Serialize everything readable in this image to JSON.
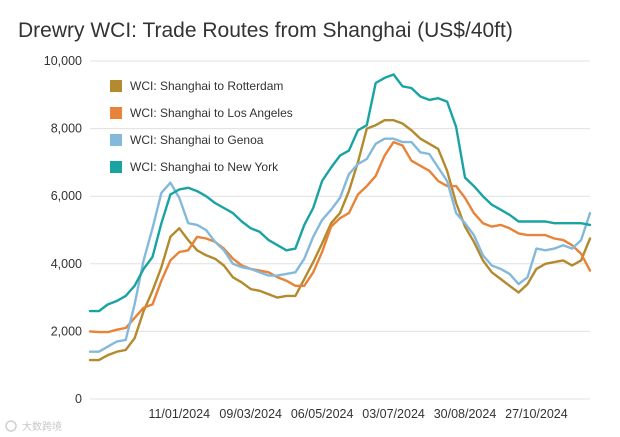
{
  "chart_data": {
    "type": "line",
    "title": "Drewry WCI: Trade Routes from Shanghai (US$/40ft)",
    "ylim": [
      0,
      10000
    ],
    "y_ticks": [
      0,
      2000,
      4000,
      6000,
      8000,
      10000
    ],
    "y_tick_labels": [
      "0",
      "2,000",
      "4,000",
      "6,000",
      "8,000",
      "10,000"
    ],
    "x_tick_labels": [
      "11/01/2024",
      "09/03/2024",
      "06/05/2024",
      "03/07/2024",
      "30/08/2024",
      "27/10/2024"
    ],
    "x_tick_week_index": [
      10,
      18,
      26,
      34,
      42,
      50
    ],
    "week_count": 57,
    "grid": true,
    "legend_position": "top-left",
    "series": [
      {
        "name": "WCI: Shanghai to Rotterdam",
        "color": "#b38a2d",
        "values": [
          1150,
          1150,
          1300,
          1400,
          1450,
          1800,
          2600,
          3200,
          3900,
          4800,
          5050,
          4700,
          4400,
          4250,
          4150,
          3950,
          3600,
          3450,
          3250,
          3200,
          3100,
          3000,
          3050,
          3050,
          3550,
          4050,
          4600,
          5200,
          5500,
          6150,
          7000,
          8000,
          8100,
          8250,
          8250,
          8150,
          7950,
          7700,
          7550,
          7400,
          6750,
          5800,
          5100,
          4650,
          4100,
          3750,
          3550,
          3350,
          3150,
          3400,
          3850,
          4000,
          4050,
          4100,
          3950,
          4100,
          4750
        ]
      },
      {
        "name": "WCI: Shanghai to Los Angeles",
        "color": "#e8833a",
        "values": [
          2000,
          1980,
          1980,
          2050,
          2100,
          2400,
          2700,
          2800,
          3500,
          4100,
          4350,
          4400,
          4800,
          4750,
          4650,
          4450,
          4150,
          3950,
          3850,
          3800,
          3750,
          3600,
          3500,
          3350,
          3350,
          3750,
          4350,
          5100,
          5350,
          5500,
          6050,
          6300,
          6600,
          7200,
          7600,
          7500,
          7050,
          6900,
          6750,
          6450,
          6300,
          6300,
          5950,
          5500,
          5200,
          5100,
          5150,
          5050,
          4900,
          4850,
          4850,
          4850,
          4750,
          4700,
          4550,
          4300,
          3800
        ]
      },
      {
        "name": "WCI: Shanghai to Genoa",
        "color": "#84b9dc",
        "values": [
          1400,
          1400,
          1550,
          1700,
          1750,
          2800,
          4100,
          5050,
          6100,
          6400,
          5950,
          5200,
          5150,
          5000,
          4650,
          4400,
          4000,
          3900,
          3850,
          3750,
          3650,
          3650,
          3700,
          3750,
          4150,
          4800,
          5300,
          5600,
          5950,
          6650,
          6950,
          7100,
          7550,
          7700,
          7700,
          7600,
          7600,
          7300,
          7250,
          6850,
          6450,
          5500,
          5200,
          4850,
          4250,
          3950,
          3850,
          3700,
          3400,
          3600,
          4450,
          4400,
          4450,
          4550,
          4450,
          4700,
          5500
        ]
      },
      {
        "name": "WCI: Shanghai to New York",
        "color": "#1aa3a3",
        "values": [
          2600,
          2600,
          2800,
          2900,
          3050,
          3350,
          3850,
          4200,
          5200,
          6050,
          6200,
          6250,
          6150,
          6000,
          5800,
          5650,
          5500,
          5250,
          5050,
          4950,
          4700,
          4550,
          4400,
          4450,
          5150,
          5650,
          6450,
          6850,
          7200,
          7350,
          7950,
          8100,
          9350,
          9500,
          9600,
          9250,
          9200,
          8950,
          8850,
          8900,
          8800,
          8050,
          6550,
          6300,
          6000,
          5750,
          5600,
          5450,
          5250,
          5250,
          5250,
          5250,
          5200,
          5200,
          5200,
          5200,
          5150
        ]
      }
    ]
  },
  "watermark": "大数跨境"
}
